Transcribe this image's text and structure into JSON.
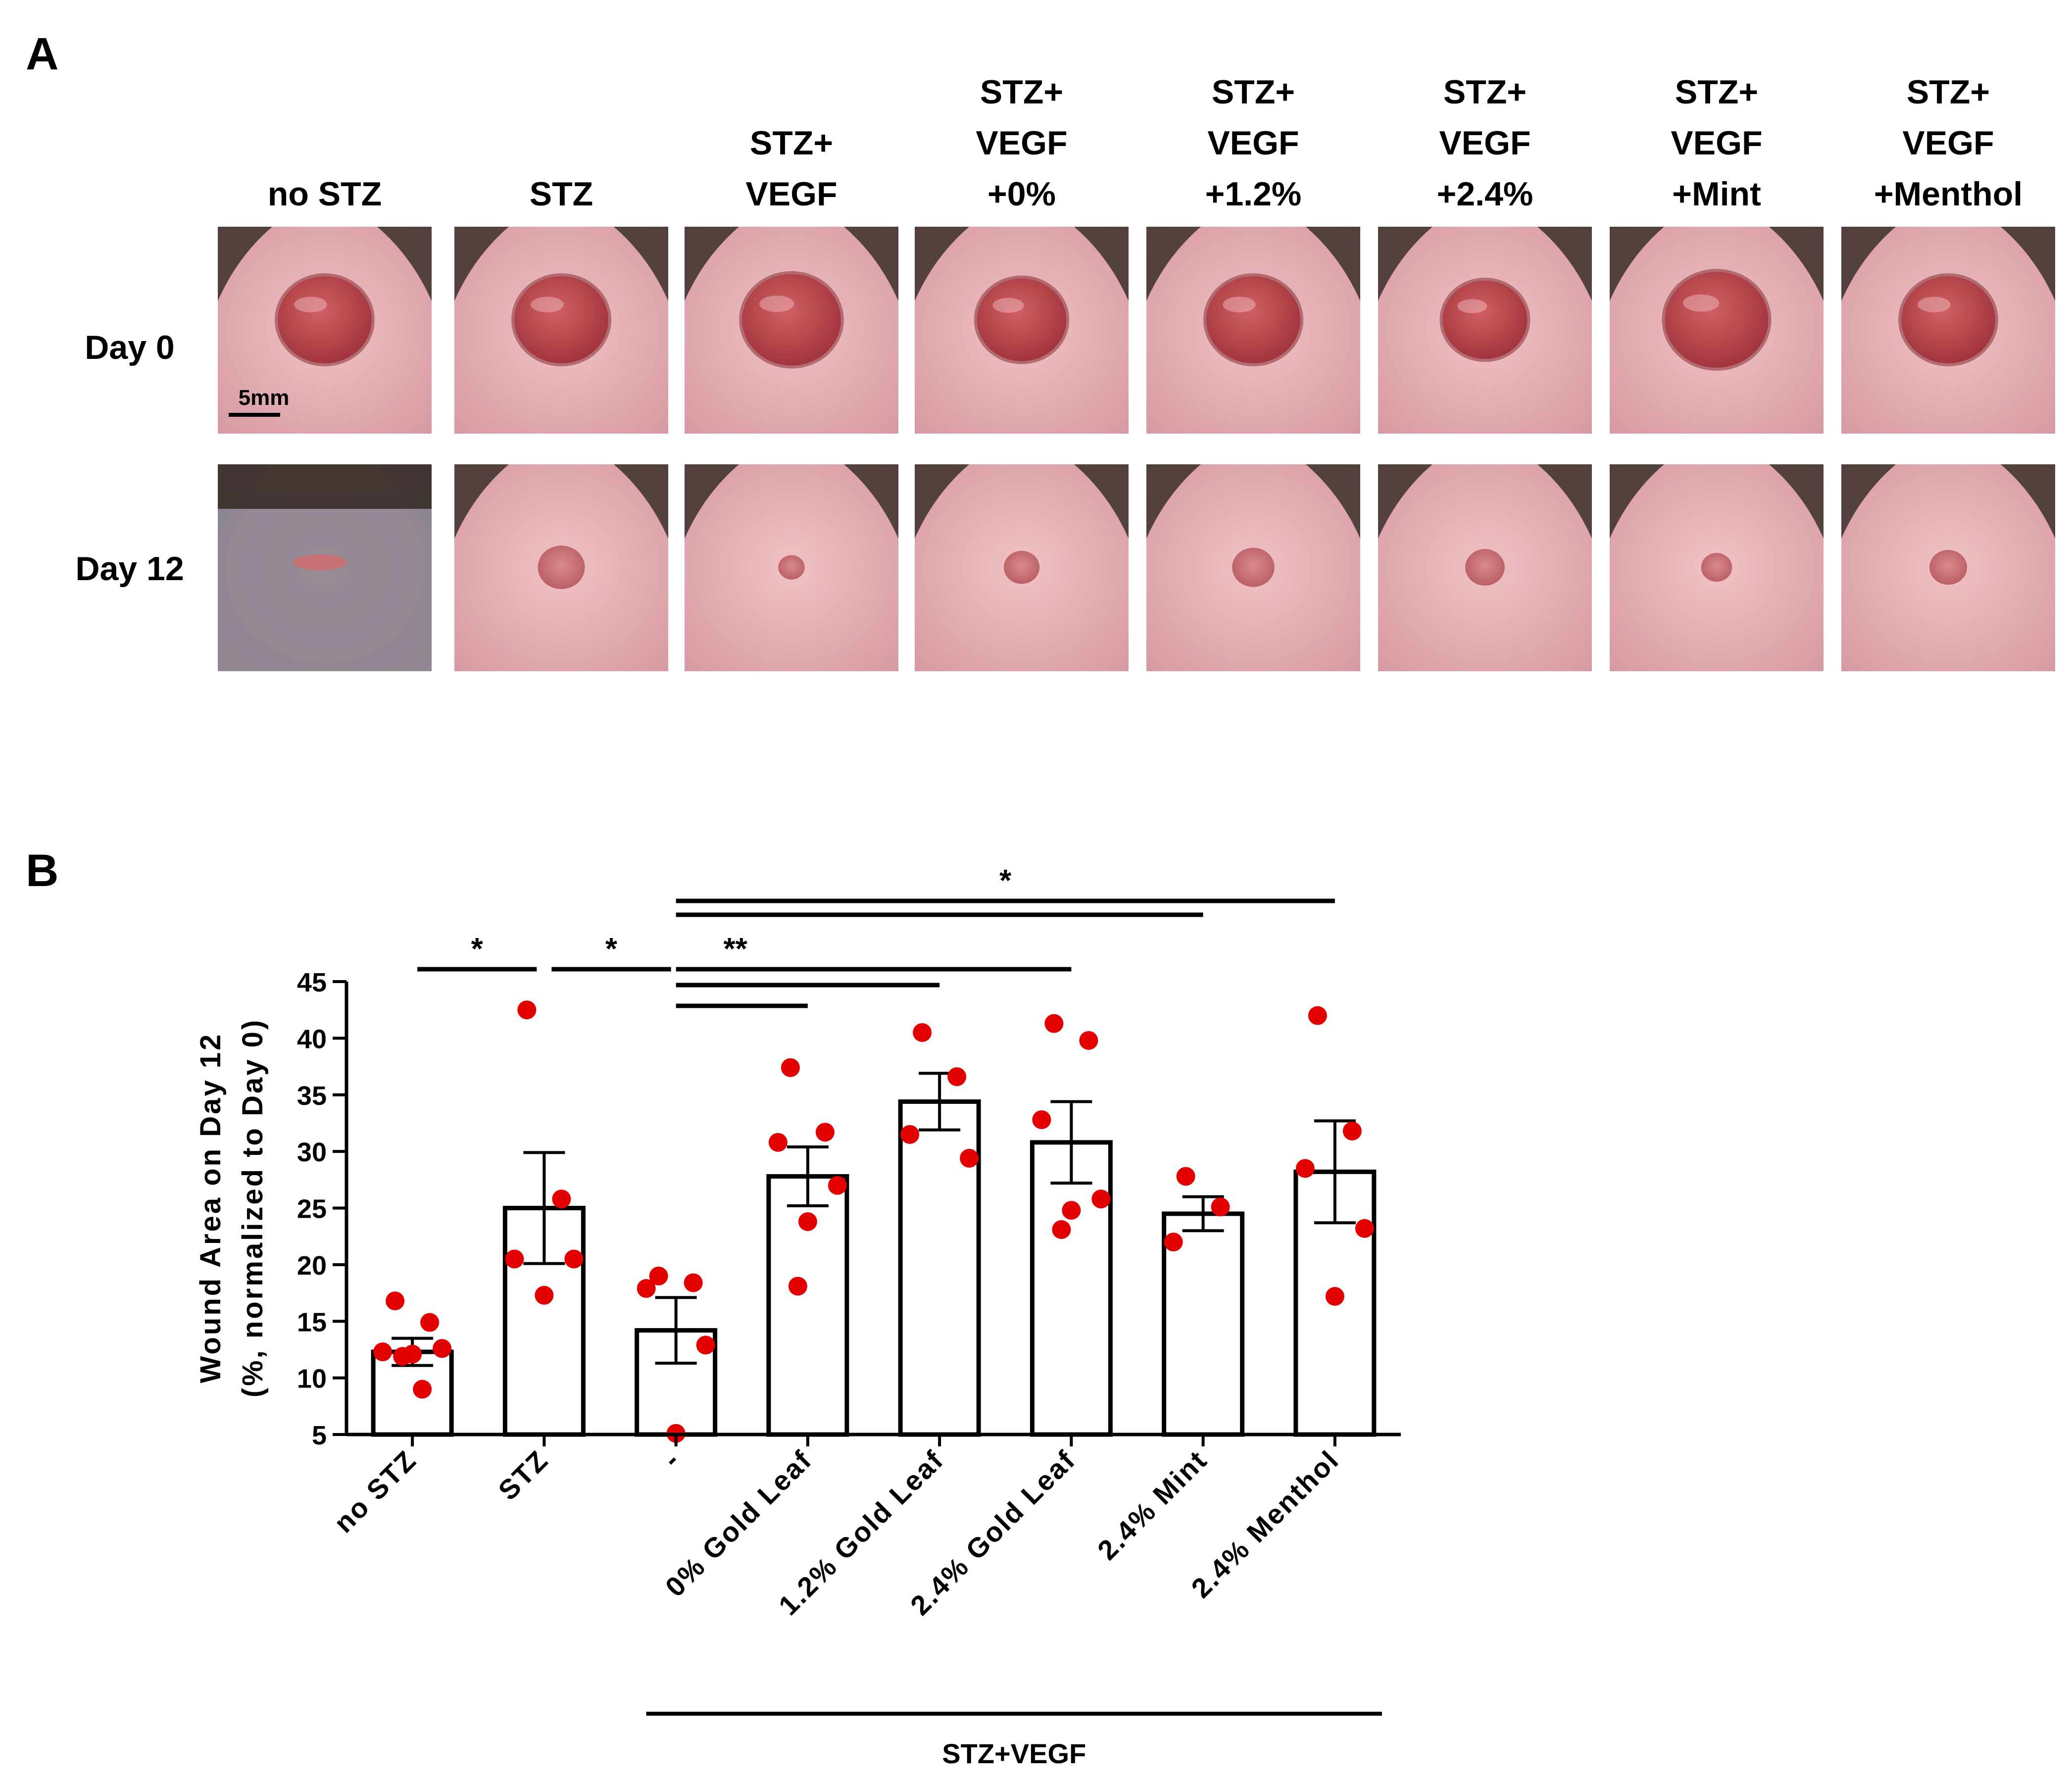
{
  "panel_a": {
    "label": "A",
    "column_headers": [
      [
        "no STZ"
      ],
      [
        "STZ"
      ],
      [
        "STZ+",
        "VEGF"
      ],
      [
        "STZ+",
        "VEGF",
        "+0%"
      ],
      [
        "STZ+",
        "VEGF",
        "+1.2%"
      ],
      [
        "STZ+",
        "VEGF",
        "+2.4%"
      ],
      [
        "STZ+",
        "VEGF",
        "+Mint"
      ],
      [
        "STZ+",
        "VEGF",
        "+Menthol"
      ]
    ],
    "row_labels": [
      "Day 0",
      "Day 12"
    ],
    "scale_bar_label": "5mm",
    "photo_colors": {
      "skin": "#e2a6ad",
      "skin_light": "#f1c2c6",
      "wound": "#b94a4e",
      "wound_healed": "#c97276",
      "fur": "#3b302c",
      "fur_grey": "#8a8590"
    },
    "wound_size_day0": [
      1.0,
      1.0,
      1.05,
      0.95,
      1.0,
      0.9,
      1.1,
      1.0
    ],
    "wound_size_day12": [
      0.45,
      0.5,
      0.28,
      0.38,
      0.45,
      0.42,
      0.33,
      0.4
    ]
  },
  "chart_data": {
    "type": "bar",
    "panel_label": "B",
    "categories": [
      "no STZ",
      "STZ",
      "-",
      "0% Gold Leaf",
      "1.2% Gold Leaf",
      "2.4% Gold Leaf",
      "2.4% Mint",
      "2.4% Menthol"
    ],
    "values": [
      12.3,
      25.0,
      14.2,
      27.8,
      34.4,
      30.8,
      24.5,
      28.2
    ],
    "errors": [
      1.2,
      4.9,
      2.9,
      2.6,
      2.5,
      3.6,
      1.5,
      4.5
    ],
    "points": [
      [
        16.8,
        14.9,
        12.3,
        12.6,
        12.1,
        11.9,
        9.0
      ],
      [
        42.5,
        25.8,
        20.5,
        20.5,
        17.3
      ],
      [
        19.0,
        18.4,
        17.9,
        12.9,
        5.1
      ],
      [
        37.4,
        31.7,
        30.8,
        27.0,
        23.8,
        18.1
      ],
      [
        40.5,
        36.6,
        31.5,
        29.4
      ],
      [
        41.3,
        39.8,
        32.8,
        25.8,
        24.8,
        23.1
      ],
      [
        27.8,
        25.1,
        22.0
      ],
      [
        42.0,
        31.8,
        28.5,
        23.2,
        17.2
      ]
    ],
    "ylabel_lines": [
      "Wound Area on Day 12",
      "(%, normalized to Day 0)"
    ],
    "ylim": [
      5,
      45
    ],
    "yticks": [
      5,
      10,
      15,
      20,
      25,
      30,
      35,
      40,
      45
    ],
    "group_label": "STZ+VEGF",
    "group_categories": [
      "-",
      "0% Gold Leaf",
      "1.2% Gold Leaf",
      "2.4% Gold Leaf",
      "2.4% Mint",
      "2.4% Menthol"
    ],
    "significance": [
      {
        "from": "no STZ",
        "to": "STZ",
        "label": "*"
      },
      {
        "from": "STZ",
        "to": "-",
        "label": "*"
      },
      {
        "from": "-",
        "to": "0% Gold Leaf",
        "label": ""
      },
      {
        "from": "-",
        "to": "1.2% Gold Leaf",
        "label": ""
      },
      {
        "from": "-",
        "to": "2.4% Gold Leaf",
        "label": "**"
      },
      {
        "from": "-",
        "to": "2.4% Mint",
        "label": ""
      },
      {
        "from": "-",
        "to": "2.4% Menthol",
        "label": "*"
      }
    ],
    "point_color": "#e30000",
    "bar_fill": "#ffffff",
    "line_color": "#000000"
  }
}
